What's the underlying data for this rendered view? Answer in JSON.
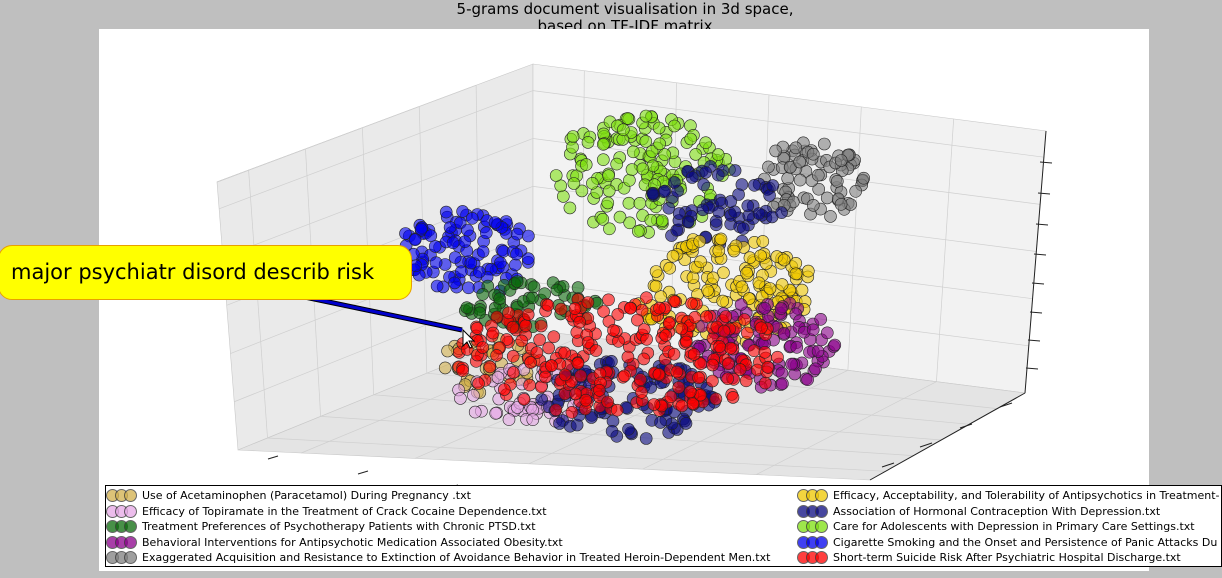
{
  "title_line1": "5-grams document visualisation in 3d space,",
  "title_line2": "based on TF-IDF matrix",
  "callout": {
    "text": "major psychiatr disord describ risk"
  },
  "chart_data": {
    "type": "scatter",
    "projection": "3d",
    "title": "5-grams document visualisation in 3d space,\nbased on TF-IDF matrix",
    "grid": true,
    "legend_placement": "bottom",
    "annotation": "major psychiatr disord describ risk",
    "series": [
      {
        "name": "Use of Acetaminophen (Paracetamol) During Pregnancy .txt",
        "color": "#d2b04c"
      },
      {
        "name": "Efficacy of Topiramate in the Treatment of Crack Cocaine Dependence.txt",
        "color": "#e6a8e6"
      },
      {
        "name": "Treatment Preferences of Psychotherapy Patients with Chronic PTSD.txt",
        "color": "#0b6b0b"
      },
      {
        "name": "Behavioral Interventions for Antipsychotic Medication Associated Obesity.txt",
        "color": "#8b008b"
      },
      {
        "name": "Exaggerated Acquisition and Resistance to Extinction of Avoidance Behavior in Treated Heroin-Dependent Men.txt",
        "color": "#808080"
      },
      {
        "name": "Efficacy, Acceptability, and Tolerability of Antipsychotics in Treatment-",
        "color": "#f0c800"
      },
      {
        "name": "Association of Hormonal Contraception With Depression.txt",
        "color": "#0a0a80"
      },
      {
        "name": "Care for Adolescents with Depression in Primary Care Settings.txt",
        "color": "#7ee010"
      },
      {
        "name": "Cigarette Smoking and the Onset and Persistence of Panic Attacks Du",
        "color": "#0000ee"
      },
      {
        "name": "Short-term Suicide Risk After Psychiatric Hospital Discharge.txt",
        "color": "#ff0000"
      }
    ]
  }
}
